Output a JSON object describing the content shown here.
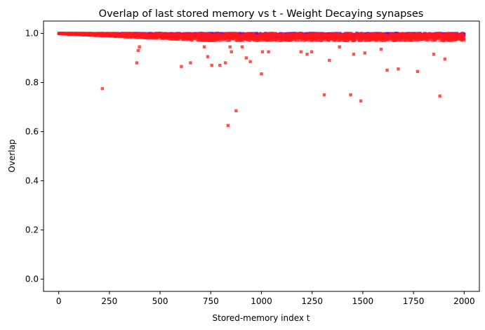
{
  "chart_data": {
    "type": "scatter",
    "title": "Overlap of last stored memory vs t  - Weight Decaying synapses",
    "xlabel": "Stored-memory index t",
    "ylabel": "Overlap",
    "xlim": [
      -75,
      2075
    ],
    "ylim": [
      -0.05,
      1.05
    ],
    "xticks": [
      0,
      250,
      500,
      750,
      1000,
      1250,
      1500,
      1750,
      2000
    ],
    "yticks": [
      0.0,
      0.2,
      0.4,
      0.6,
      0.8,
      1.0
    ],
    "xtick_labels": [
      "0",
      "250",
      "500",
      "750",
      "1000",
      "1250",
      "1500",
      "1750",
      "2000"
    ],
    "ytick_labels": [
      "0.0",
      "0.2",
      "0.4",
      "0.6",
      "0.8",
      "1.0"
    ],
    "grid": false,
    "colors": {
      "series_a": "#6a00e0",
      "series_b": "#ff1a1a"
    },
    "n_points": 2000,
    "outliers": [
      [
        215,
        0.775
      ],
      [
        385,
        0.88
      ],
      [
        392,
        0.93
      ],
      [
        398,
        0.945
      ],
      [
        605,
        0.865
      ],
      [
        650,
        0.88
      ],
      [
        718,
        0.945
      ],
      [
        735,
        0.905
      ],
      [
        755,
        0.87
      ],
      [
        795,
        0.87
      ],
      [
        822,
        0.88
      ],
      [
        835,
        0.625
      ],
      [
        845,
        0.945
      ],
      [
        852,
        0.925
      ],
      [
        875,
        0.685
      ],
      [
        905,
        0.945
      ],
      [
        925,
        0.9
      ],
      [
        945,
        0.885
      ],
      [
        1000,
        0.835
      ],
      [
        1005,
        0.925
      ],
      [
        1035,
        0.925
      ],
      [
        1195,
        0.925
      ],
      [
        1225,
        0.915
      ],
      [
        1248,
        0.925
      ],
      [
        1310,
        0.75
      ],
      [
        1335,
        0.89
      ],
      [
        1385,
        0.945
      ],
      [
        1440,
        0.75
      ],
      [
        1455,
        0.915
      ],
      [
        1490,
        0.725
      ],
      [
        1510,
        0.92
      ],
      [
        1590,
        0.935
      ],
      [
        1620,
        0.85
      ],
      [
        1675,
        0.855
      ],
      [
        1770,
        0.845
      ],
      [
        1850,
        0.915
      ],
      [
        1880,
        0.745
      ],
      [
        1905,
        0.895
      ]
    ]
  }
}
